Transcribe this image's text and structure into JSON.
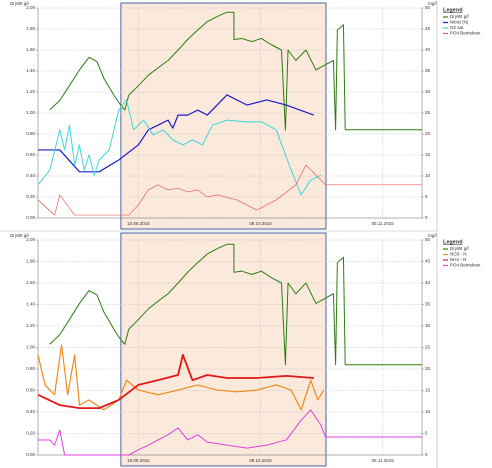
{
  "chart_data": [
    {
      "type": "line",
      "y_label": "DryWt g/l",
      "y2_label": "mg/l",
      "legend_title": "Legend",
      "xlim": [
        0,
        88
      ],
      "xticks": [
        {
          "value": 23,
          "label": "10.09.2015"
        },
        {
          "value": 51,
          "label": "08.10.2015"
        },
        {
          "value": 79,
          "label": "05.11.2015"
        }
      ],
      "ylim": [
        0,
        2
      ],
      "yticks": [
        {
          "value": 0,
          "label": "0.00"
        },
        {
          "value": 0.2,
          "label": "0.20"
        },
        {
          "value": 0.4,
          "label": "0.40"
        },
        {
          "value": 0.6,
          "label": "0.60"
        },
        {
          "value": 0.8,
          "label": "0.80"
        },
        {
          "value": 1,
          "label": "1.00"
        },
        {
          "value": 1.2,
          "label": "1.20"
        },
        {
          "value": 1.4,
          "label": "1.40"
        },
        {
          "value": 1.6,
          "label": "1.60"
        },
        {
          "value": 1.8,
          "label": "1.80"
        },
        {
          "value": 2,
          "label": "2.00"
        }
      ],
      "y2lim": [
        0,
        50
      ],
      "y2ticks": [
        0,
        5,
        10,
        15,
        20,
        25,
        30,
        35,
        40,
        45,
        50
      ],
      "grid": true,
      "highlight_x": [
        19,
        66
      ],
      "series": [
        {
          "name": "DryWt g/l",
          "color": "#2e7d12",
          "width": 1,
          "x": [
            2.7,
            5.0,
            7.2,
            9.5,
            11.7,
            13.5,
            15.1,
            17.4,
            19.0,
            19.9,
            20.8,
            23.0,
            25.3,
            27.5,
            29.8,
            32.1,
            34.3,
            36.6,
            38.8,
            41.1,
            43.3,
            44.9,
            44.9,
            46.7,
            49.0,
            51.2,
            53.5,
            55.8,
            56.7,
            57.3,
            59.1,
            61.4,
            63.7,
            65.9,
            67.7,
            68.2,
            68.6,
            70.0,
            70.4,
            72.7,
            88
          ],
          "values": [
            1.03,
            1.12,
            1.26,
            1.41,
            1.53,
            1.49,
            1.33,
            1.17,
            1.07,
            1.03,
            1.17,
            1.26,
            1.36,
            1.43,
            1.5,
            1.6,
            1.7,
            1.79,
            1.87,
            1.92,
            1.96,
            1.96,
            1.7,
            1.71,
            1.68,
            1.71,
            1.65,
            1.6,
            0.84,
            1.6,
            1.5,
            1.6,
            1.41,
            1.46,
            1.5,
            0.84,
            1.79,
            1.84,
            0.84,
            0.84,
            0.84
          ]
        },
        {
          "name": "Nitrat (N)",
          "color": "#1c1cc8",
          "width": 1.2,
          "axis": "y2",
          "x": [
            0,
            5.0,
            9.5,
            14.0,
            18.5,
            23.0,
            25.3,
            27.5,
            29.8,
            30.9,
            32.1,
            34.3,
            36.6,
            38.8,
            43.3,
            47.9,
            52.4,
            56.9,
            63.2
          ],
          "values": [
            16.2,
            16.2,
            11.0,
            11.0,
            13.8,
            17.4,
            21.0,
            22.1,
            23.3,
            21.4,
            24.5,
            24.5,
            25.7,
            24.5,
            29.3,
            26.9,
            28.1,
            26.9,
            24.5
          ]
        },
        {
          "name": "O2 sat.",
          "color": "#3fd6dc",
          "width": 1,
          "axis": "y2",
          "x": [
            0,
            2.7,
            5.0,
            6.1,
            7.2,
            8.4,
            9.5,
            10.6,
            11.7,
            12.9,
            14.0,
            16.3,
            18.5,
            20.3,
            21.9,
            24.2,
            26.4,
            28.7,
            30.9,
            33.2,
            35.4,
            37.7,
            40.0,
            43.3,
            47.9,
            51.2,
            54.6,
            58.0,
            60.3,
            62.5,
            64.8
          ],
          "values": [
            7.9,
            11.4,
            21.0,
            16.2,
            22.1,
            12.6,
            17.4,
            11.4,
            15.0,
            10.2,
            13.8,
            16.2,
            25.7,
            28.1,
            21.0,
            23.3,
            19.8,
            21.0,
            18.6,
            17.4,
            18.6,
            17.4,
            22.1,
            23.3,
            22.9,
            22.9,
            21.0,
            11.4,
            5.5,
            9.0,
            10.2
          ]
        },
        {
          "name": "PO4 Betriebsw.",
          "color": "#e0645a",
          "width": 0.7,
          "axis": "y2",
          "x": [
            0,
            3.8,
            5.0,
            8.4,
            14.0,
            18.5,
            20.8,
            23.0,
            25.3,
            27.5,
            29.8,
            32.1,
            34.3,
            36.6,
            38.8,
            41.1,
            45.6,
            50.1,
            54.6,
            59.1,
            61.4,
            63.7,
            65.9,
            88
          ],
          "values": [
            4.3,
            0.7,
            5.5,
            0.7,
            0.7,
            0.7,
            0.7,
            3.1,
            6.7,
            7.9,
            6.7,
            7.1,
            6.2,
            6.7,
            5.0,
            5.5,
            4.3,
            1.9,
            4.3,
            7.9,
            12.6,
            10.2,
            7.9,
            7.9
          ]
        }
      ]
    },
    {
      "type": "line",
      "y_label": "DryWt g/l",
      "y2_label": "mg/l",
      "legend_title": "Legend",
      "xlim": [
        0,
        88
      ],
      "xticks": [
        {
          "value": 23,
          "label": "10.09.2015"
        },
        {
          "value": 51,
          "label": "08.10.2015"
        },
        {
          "value": 79,
          "label": "05.11.2015"
        }
      ],
      "ylim": [
        0,
        2
      ],
      "yticks": [
        {
          "value": 0,
          "label": "0.00"
        },
        {
          "value": 0.2,
          "label": "0.20"
        },
        {
          "value": 0.4,
          "label": "0.40"
        },
        {
          "value": 0.6,
          "label": "0.60"
        },
        {
          "value": 0.8,
          "label": "0.80"
        },
        {
          "value": 1,
          "label": "1.00"
        },
        {
          "value": 1.2,
          "label": "1.20"
        },
        {
          "value": 1.4,
          "label": "1.40"
        },
        {
          "value": 1.6,
          "label": "1.60"
        },
        {
          "value": 1.8,
          "label": "1.80"
        },
        {
          "value": 2,
          "label": "2.00"
        }
      ],
      "y2lim": [
        0,
        50
      ],
      "y2ticks": [
        0,
        5,
        10,
        15,
        20,
        25,
        30,
        35,
        40,
        45,
        50
      ],
      "grid": true,
      "highlight_x": [
        19,
        66
      ],
      "series": [
        {
          "name": "DryWt g/l",
          "color": "#2e7d12",
          "width": 1,
          "x": [
            2.7,
            5.0,
            7.2,
            9.5,
            11.7,
            13.5,
            15.1,
            17.4,
            19.0,
            19.9,
            20.8,
            23.0,
            25.3,
            27.5,
            29.8,
            32.1,
            34.3,
            36.6,
            38.8,
            41.1,
            43.3,
            44.9,
            44.9,
            46.7,
            49.0,
            51.2,
            53.5,
            55.8,
            56.7,
            57.3,
            59.1,
            61.4,
            63.7,
            65.9,
            67.7,
            68.2,
            68.6,
            70.0,
            70.4,
            72.7,
            88
          ],
          "values": [
            1.03,
            1.12,
            1.26,
            1.41,
            1.53,
            1.49,
            1.33,
            1.17,
            1.07,
            1.03,
            1.17,
            1.26,
            1.36,
            1.43,
            1.5,
            1.6,
            1.7,
            1.79,
            1.87,
            1.92,
            1.96,
            1.96,
            1.7,
            1.71,
            1.68,
            1.71,
            1.65,
            1.6,
            0.84,
            1.6,
            1.5,
            1.6,
            1.41,
            1.46,
            1.5,
            0.84,
            1.79,
            1.84,
            0.84,
            0.84,
            0.84
          ]
        },
        {
          "name": "NO3 - N",
          "color": "#f08a1c",
          "width": 1.2,
          "axis": "y2",
          "x": [
            0,
            1.6,
            3.8,
            5.4,
            6.8,
            8.4,
            9.5,
            11.7,
            15.1,
            18.5,
            20.3,
            23.0,
            27.5,
            32.1,
            36.6,
            41.1,
            45.6,
            50.1,
            54.6,
            58.0,
            60.3,
            62.5,
            64.1,
            65.5
          ],
          "values": [
            23.3,
            16.3,
            14.0,
            25.6,
            14.0,
            23.3,
            11.6,
            12.8,
            10.5,
            12.8,
            17.4,
            15.1,
            14.0,
            15.1,
            16.3,
            15.1,
            14.7,
            15.1,
            16.3,
            15.1,
            10.5,
            17.4,
            12.8,
            15.1
          ]
        },
        {
          "name": "NH4 - N",
          "color": "#e01818",
          "width": 1.8,
          "axis": "y2",
          "x": [
            0,
            5.0,
            9.5,
            14.0,
            18.5,
            23.0,
            27.5,
            32.1,
            33.2,
            35.4,
            38.8,
            43.3,
            50.1,
            56.9,
            63.2
          ],
          "values": [
            14.0,
            11.6,
            10.9,
            10.9,
            12.8,
            16.3,
            17.4,
            18.6,
            23.3,
            17.4,
            18.6,
            17.9,
            17.9,
            18.4,
            17.9
          ]
        },
        {
          "name": "PO4 Betriebsw.",
          "color": "#e040e0",
          "width": 1,
          "axis": "y2",
          "x": [
            0,
            2.7,
            3.8,
            5.0,
            6.1,
            18.5,
            20.8,
            23.0,
            25.3,
            27.5,
            29.8,
            32.1,
            34.3,
            36.6,
            38.8,
            43.3,
            47.9,
            52.4,
            56.9,
            60.3,
            62.5,
            64.8,
            65.9,
            88
          ],
          "values": [
            3.5,
            3.5,
            2.3,
            5.8,
            0,
            0,
            0,
            1.2,
            2.3,
            3.5,
            4.7,
            6.3,
            3.5,
            4.7,
            3.0,
            2.3,
            1.6,
            2.3,
            3.5,
            8.1,
            10.5,
            7.0,
            4.2,
            4.2
          ]
        }
      ]
    }
  ]
}
